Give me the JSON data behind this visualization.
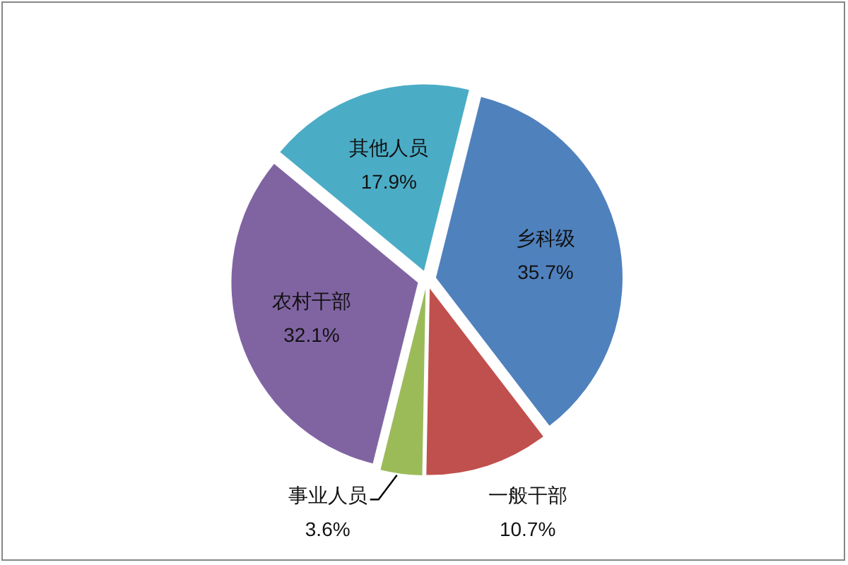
{
  "chart_data": {
    "type": "pie",
    "categories": [
      "乡科级",
      "一般干部",
      "事业人员",
      "农村干部",
      "其他人员"
    ],
    "values": [
      35.7,
      10.7,
      3.6,
      32.1,
      17.9
    ],
    "colors": [
      "#4f81bd",
      "#c0504d",
      "#9bbb59",
      "#8064a2",
      "#4bacc6"
    ],
    "value_labels": [
      "35.7%",
      "10.7%",
      "3.6%",
      "32.1%",
      "17.9%"
    ]
  }
}
